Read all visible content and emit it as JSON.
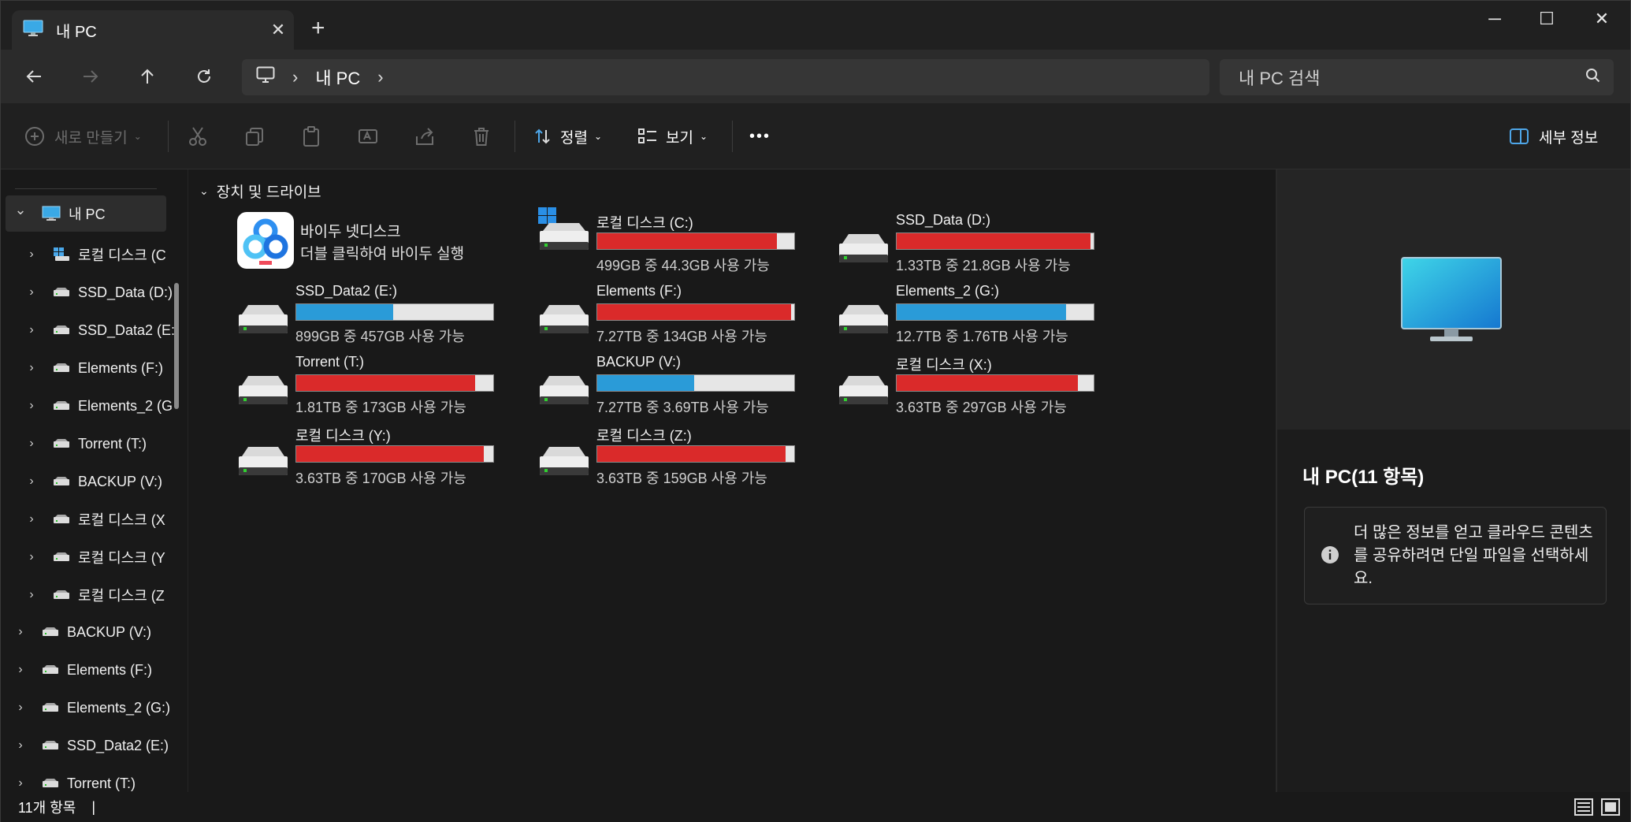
{
  "window": {
    "tab_title": "내 PC",
    "tab_close": "✕",
    "new_tab": "+",
    "minimize": "─",
    "maximize": "☐",
    "close": "✕"
  },
  "address": {
    "crumb": "내 PC",
    "search_placeholder": "내 PC 검색"
  },
  "commands": {
    "new": "새로 만들기",
    "sort": "정렬",
    "view": "보기",
    "more": "•••",
    "details": "세부 정보"
  },
  "sidebar": {
    "items": [
      {
        "label": "내 PC",
        "expanded": true,
        "selected": true,
        "level": 0,
        "icon": "pc-icon"
      },
      {
        "label": "로컬 디스크 (C",
        "level": 1,
        "icon": "windows-drive-icon"
      },
      {
        "label": "SSD_Data (D:)",
        "level": 1,
        "icon": "drive-icon"
      },
      {
        "label": "SSD_Data2 (E:)",
        "level": 1,
        "icon": "drive-icon"
      },
      {
        "label": "Elements (F:)",
        "level": 1,
        "icon": "drive-icon"
      },
      {
        "label": "Elements_2 (G",
        "level": 1,
        "icon": "drive-icon"
      },
      {
        "label": "Torrent (T:)",
        "level": 1,
        "icon": "drive-icon"
      },
      {
        "label": "BACKUP (V:)",
        "level": 1,
        "icon": "drive-icon"
      },
      {
        "label": "로컬 디스크 (X",
        "level": 1,
        "icon": "drive-icon"
      },
      {
        "label": "로컬 디스크 (Y",
        "level": 1,
        "icon": "drive-icon"
      },
      {
        "label": "로컬 디스크 (Z",
        "level": 1,
        "icon": "drive-icon"
      },
      {
        "label": "BACKUP (V:)",
        "level": 0,
        "icon": "drive-icon"
      },
      {
        "label": "Elements (F:)",
        "level": 0,
        "icon": "drive-icon"
      },
      {
        "label": "Elements_2 (G:)",
        "level": 0,
        "icon": "drive-icon"
      },
      {
        "label": "SSD_Data2 (E:)",
        "level": 0,
        "icon": "drive-icon"
      },
      {
        "label": "Torrent (T:)",
        "level": 0,
        "icon": "drive-icon"
      }
    ]
  },
  "main": {
    "section_title": "장치 및 드라이브",
    "app": {
      "name": "바이두 넷디스크",
      "sub": "더블 클릭하여 바이두 실행"
    },
    "drives": [
      {
        "name": "로컬 디스크 (C:)",
        "info": "499GB 중 44.3GB 사용 가능",
        "used": 0.911,
        "color": "#da2a2a",
        "windows": true
      },
      {
        "name": "SSD_Data (D:)",
        "info": "1.33TB 중 21.8GB 사용 가능",
        "used": 0.984,
        "color": "#da2a2a"
      },
      {
        "name": "SSD_Data2 (E:)",
        "info": "899GB 중 457GB 사용 가능",
        "used": 0.492,
        "color": "#2a9bd8"
      },
      {
        "name": "Elements (F:)",
        "info": "7.27TB 중 134GB 사용 가능",
        "used": 0.982,
        "color": "#da2a2a"
      },
      {
        "name": "Elements_2 (G:)",
        "info": "12.7TB 중 1.76TB 사용 가능",
        "used": 0.861,
        "color": "#2a9bd8"
      },
      {
        "name": "Torrent (T:)",
        "info": "1.81TB 중 173GB 사용 가능",
        "used": 0.907,
        "color": "#da2a2a"
      },
      {
        "name": "BACKUP (V:)",
        "info": "7.27TB 중 3.69TB 사용 가능",
        "used": 0.492,
        "color": "#2a9bd8"
      },
      {
        "name": "로컬 디스크 (X:)",
        "info": "3.63TB 중 297GB 사용 가능",
        "used": 0.918,
        "color": "#da2a2a"
      },
      {
        "name": "로컬 디스크 (Y:)",
        "info": "3.63TB 중 170GB 사용 가능",
        "used": 0.953,
        "color": "#da2a2a"
      },
      {
        "name": "로컬 디스크 (Z:)",
        "info": "3.63TB 중 159GB 사용 가능",
        "used": 0.956,
        "color": "#da2a2a"
      }
    ]
  },
  "details": {
    "title": "내 PC(11 항목)",
    "info_text": "더 많은 정보를 얻고 클라우드 콘텐츠를 공유하려면 단일 파일을 선택하세요."
  },
  "status": {
    "count": "11개 항목",
    "cursor": "|"
  }
}
